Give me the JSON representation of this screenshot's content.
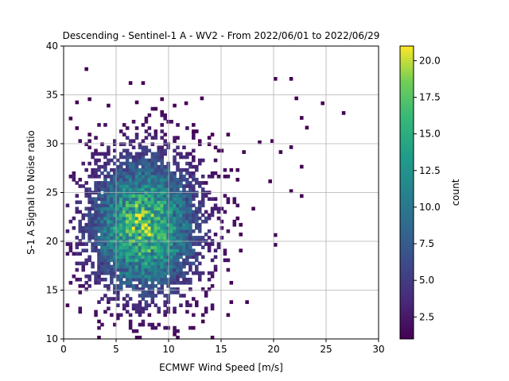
{
  "chart_data": {
    "type": "heatmap",
    "title": "Descending - Sentinel-1 A - WV2 - From 2022/06/01 to 2022/06/29",
    "xlabel": "ECMWF Wind Speed [m/s]",
    "ylabel": "S-1 A Signal to Noise ratio",
    "xlim": [
      0,
      30
    ],
    "ylim": [
      10,
      40
    ],
    "xticks": [
      "0",
      "5",
      "10",
      "15",
      "20",
      "25",
      "30"
    ],
    "yticks": [
      "10",
      "15",
      "20",
      "25",
      "30",
      "35",
      "40"
    ],
    "grid": true,
    "colormap": "viridis",
    "colorbar": {
      "label": "count",
      "range": [
        1,
        21
      ],
      "ticks": [
        "2.5",
        "5.0",
        "7.5",
        "10.0",
        "12.5",
        "15.0",
        "17.5",
        "20.0"
      ]
    },
    "bin_width": {
      "x": 0.3,
      "y": 0.33
    },
    "distribution": {
      "description_centers": [
        7.5,
        21.5
      ],
      "peak_count": 21,
      "x_extent": [
        0.2,
        26.5
      ],
      "y_extent": [
        10.0,
        37.5
      ]
    },
    "outliers": [
      [
        2.0,
        37.5
      ],
      [
        13.0,
        34.5
      ],
      [
        11.5,
        34.0
      ],
      [
        20.0,
        36.5
      ],
      [
        21.5,
        36.5
      ],
      [
        26.5,
        33.0
      ],
      [
        24.5,
        34.0
      ],
      [
        22.0,
        34.5
      ],
      [
        22.5,
        32.5
      ],
      [
        23.0,
        31.5
      ],
      [
        21.5,
        29.5
      ],
      [
        22.5,
        27.5
      ],
      [
        20.5,
        29.0
      ],
      [
        21.5,
        25.0
      ],
      [
        22.5,
        24.5
      ],
      [
        20.0,
        20.5
      ],
      [
        20.0,
        19.5
      ],
      [
        19.5,
        26.0
      ],
      [
        17.0,
        29.0
      ],
      [
        18.5,
        30.0
      ]
    ]
  }
}
